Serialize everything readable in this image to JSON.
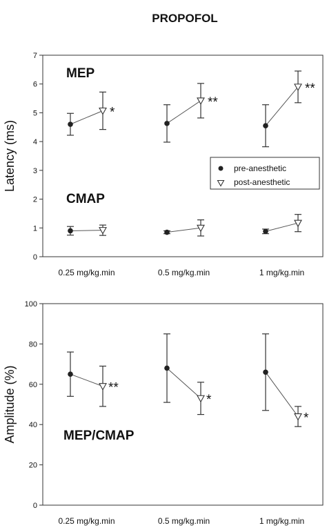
{
  "title": "PROPOFOL",
  "legend": {
    "pre_label": "pre-anesthetic",
    "post_label": "post-anesthetic"
  },
  "chart_data": [
    {
      "type": "line",
      "ylabel": "Latency (ms)",
      "ylim": [
        0,
        7
      ],
      "yticks": [
        0,
        1,
        2,
        3,
        4,
        5,
        6,
        7
      ],
      "categories": [
        "0.25 mg/kg.min",
        "0.5 mg/kg.min",
        "1 mg/kg.min"
      ],
      "legend_position": "right-middle",
      "groups": [
        {
          "label": "MEP",
          "series": [
            {
              "name": "pre-anesthetic",
              "marker": "filled-circle",
              "values": [
                4.6,
                4.63,
                4.55
              ],
              "errors": [
                0.38,
                0.65,
                0.73
              ]
            },
            {
              "name": "post-anesthetic",
              "marker": "open-triangle-down",
              "values": [
                5.07,
                5.42,
                5.9
              ],
              "errors": [
                0.65,
                0.6,
                0.55
              ]
            }
          ],
          "annotations": [
            "*",
            "**",
            "**"
          ]
        },
        {
          "label": "CMAP",
          "series": [
            {
              "name": "pre-anesthetic",
              "marker": "filled-circle",
              "values": [
                0.9,
                0.85,
                0.88
              ],
              "errors": [
                0.15,
                0.05,
                0.08
              ]
            },
            {
              "name": "post-anesthetic",
              "marker": "open-triangle-down",
              "values": [
                0.92,
                1.0,
                1.17
              ],
              "errors": [
                0.18,
                0.28,
                0.3
              ]
            }
          ],
          "annotations": [
            "",
            "",
            ""
          ]
        }
      ]
    },
    {
      "type": "line",
      "ylabel": "Amplitude (%)",
      "ylim": [
        0,
        100
      ],
      "yticks": [
        0,
        20,
        40,
        60,
        80,
        100
      ],
      "categories": [
        "0.25 mg/kg.min",
        "0.5 mg/kg.min",
        "1 mg/kg.min"
      ],
      "groups": [
        {
          "label": "MEP/CMAP",
          "series": [
            {
              "name": "pre-anesthetic",
              "marker": "filled-circle",
              "values": [
                65,
                68,
                66
              ],
              "errors": [
                11,
                17,
                19
              ]
            },
            {
              "name": "post-anesthetic",
              "marker": "open-triangle-down",
              "values": [
                59,
                53,
                44
              ],
              "errors": [
                10,
                8,
                5
              ]
            }
          ],
          "annotations": [
            "**",
            "*",
            "*"
          ]
        }
      ]
    }
  ]
}
